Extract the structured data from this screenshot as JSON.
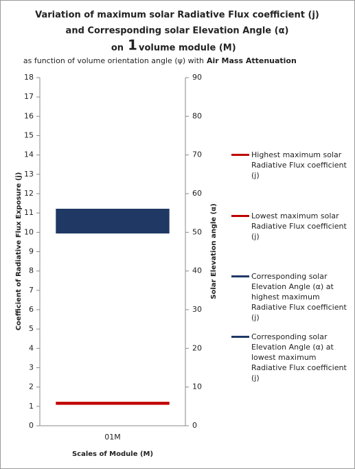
{
  "chart_data": {
    "type": "floating-bar",
    "title": [
      "Variation of maximum solar Radiative Flux coefficient (j)",
      "and Corresponding solar Elevation Angle (α)"
    ],
    "title_line3": [
      "on",
      "1",
      "volume module (M)"
    ],
    "subtitle": [
      "as function of volume orientation angle  (ψ) with",
      "Air Mass Attenuation"
    ],
    "x_label": "Scales of Module (M)",
    "y_label": "Coefficient of Radiative Flux Exposure (j)",
    "y2_label": "Solar Elevation angle (α)",
    "categories": [
      "01M"
    ],
    "series": [
      {
        "name": "Highest maximum  solar Radiative Flux coefficient (j)",
        "color": "#c00000",
        "values": [
          1.22
        ]
      },
      {
        "name": "Lowest maximum  solar Radiative Flux coefficient (j)",
        "color": "#c00000",
        "values": [
          1.1
        ]
      },
      {
        "name": "Corresponding solar Elevation Angle (α) at highest maximum Radiative Flux coefficient (j)",
        "color": "#1f3864",
        "values": [
          56
        ],
        "axis": "y2"
      },
      {
        "name": "Corresponding solar Elevation Angle (α) at lowest maximum Radiative Flux coefficient (j)",
        "color": "#1f3864",
        "values": [
          49.8
        ],
        "axis": "y2"
      }
    ],
    "ylim": [
      0,
      18
    ],
    "yticks": [
      0,
      1,
      2,
      3,
      4,
      5,
      6,
      7,
      8,
      9,
      10,
      11,
      12,
      13,
      14,
      15,
      16,
      17,
      18
    ],
    "y2lim": [
      0,
      90
    ],
    "y2ticks": [
      0,
      10,
      20,
      30,
      40,
      50,
      60,
      70,
      80,
      90
    ],
    "grid": false
  }
}
